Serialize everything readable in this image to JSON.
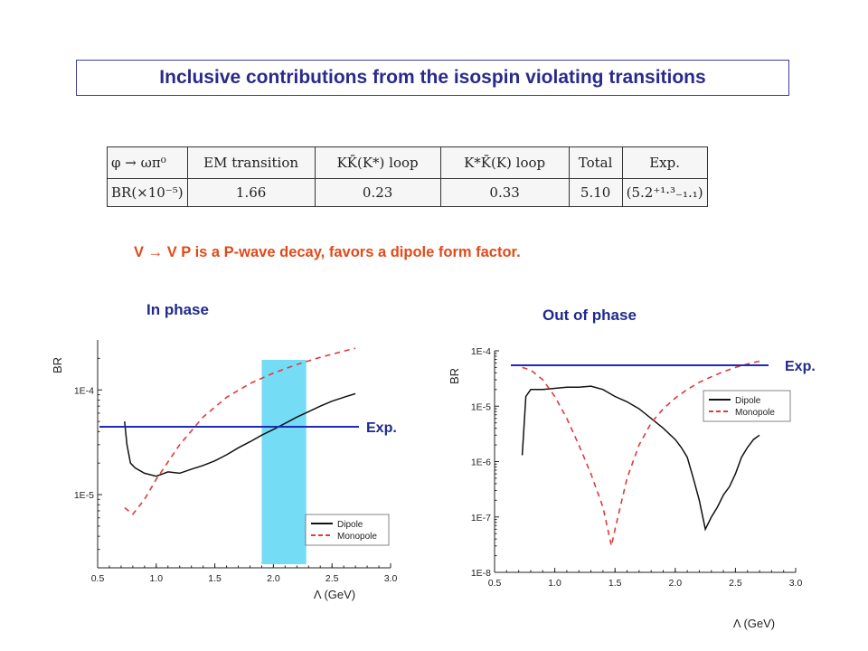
{
  "title": "Inclusive contributions from the isospin violating transitions",
  "table": {
    "headers": [
      "φ → ωπ⁰",
      "EM transition",
      "KK̄(K*) loop",
      "K*K̄(K) loop",
      "Total",
      "Exp."
    ],
    "row": [
      "BR(×10⁻⁵)",
      "1.66",
      "0.23",
      "0.33",
      "5.10",
      "(5.2⁺¹·³₋₁.₁)"
    ]
  },
  "note": "V  V P is a P-wave decay, favors a dipole form factor.",
  "note_arrow": "→",
  "colors": {
    "title": "#2a2a8c",
    "note": "#e04a1a",
    "exp_line": "#1f2ab8",
    "band": "#66d8f5",
    "dipole": "#111111",
    "monopole": "#e03a3a"
  },
  "chart_data": [
    {
      "type": "line",
      "panel_label": "In phase",
      "ylabel": "BR",
      "xlabel": "Λ  (GeV)",
      "yscale": "log",
      "xlim": [
        0.5,
        3.0
      ],
      "ylim": [
        2e-06,
        0.0003
      ],
      "xticks": [
        "0.5",
        "1.0",
        "1.5",
        "2.0",
        "2.5",
        "3.0"
      ],
      "yticks": [
        {
          "value": 0.0001,
          "label": "1E-4"
        },
        {
          "value": 1e-05,
          "label": "1E-5"
        }
      ],
      "legend": "bottom-right",
      "exp_label": "Exp.",
      "exp_value": 5.2e-05,
      "band": [
        1.9,
        2.28
      ],
      "series": [
        {
          "name": "Dipole",
          "style": "solid",
          "x": [
            0.73,
            0.75,
            0.78,
            0.82,
            0.9,
            1.0,
            1.1,
            1.2,
            1.3,
            1.4,
            1.5,
            1.6,
            1.7,
            1.8,
            1.9,
            2.0,
            2.1,
            2.2,
            2.3,
            2.4,
            2.5,
            2.6,
            2.7
          ],
          "y": [
            5e-05,
            3e-05,
            2e-05,
            1.8e-05,
            1.6e-05,
            1.5e-05,
            1.65e-05,
            1.6e-05,
            1.75e-05,
            1.9e-05,
            2.1e-05,
            2.4e-05,
            2.8e-05,
            3.2e-05,
            3.7e-05,
            4.2e-05,
            4.8e-05,
            5.5e-05,
            6.2e-05,
            7e-05,
            7.8e-05,
            8.5e-05,
            9.2e-05
          ]
        },
        {
          "name": "Monopole",
          "style": "dashed",
          "x": [
            0.73,
            0.8,
            0.9,
            1.0,
            1.2,
            1.4,
            1.6,
            1.8,
            2.0,
            2.2,
            2.4,
            2.6,
            2.7
          ],
          "y": [
            7.5e-06,
            6.5e-06,
            9e-06,
            1.4e-05,
            3e-05,
            5.5e-05,
            8.5e-05,
            0.000115,
            0.000145,
            0.000175,
            0.000205,
            0.000235,
            0.00025
          ]
        }
      ]
    },
    {
      "type": "line",
      "panel_label": "Out of phase",
      "ylabel": "BR",
      "xlabel": "Λ  (GeV)",
      "yscale": "log",
      "xlim": [
        0.5,
        3.0
      ],
      "ylim": [
        1e-08,
        0.0001
      ],
      "xticks": [
        "0.5",
        "1.0",
        "1.5",
        "2.0",
        "2.5",
        "3.0"
      ],
      "yticks": [
        {
          "value": 0.0001,
          "label": "1E-4"
        },
        {
          "value": 1e-05,
          "label": "1E-5"
        },
        {
          "value": 1e-06,
          "label": "1E-6"
        },
        {
          "value": 1e-07,
          "label": "1E-7"
        },
        {
          "value": 1e-08,
          "label": "1E-8"
        }
      ],
      "legend": "top-right",
      "exp_label": "Exp.",
      "exp_value": 5.2e-05,
      "series": [
        {
          "name": "Dipole",
          "style": "solid",
          "x": [
            0.73,
            0.76,
            0.8,
            0.9,
            1.0,
            1.1,
            1.2,
            1.3,
            1.4,
            1.5,
            1.6,
            1.7,
            1.8,
            1.9,
            2.0,
            2.05,
            2.1,
            2.15,
            2.2,
            2.25,
            2.3,
            2.35,
            2.4,
            2.45,
            2.5,
            2.55,
            2.6,
            2.65,
            2.7
          ],
          "y": [
            1.3e-06,
            1.5e-05,
            2e-05,
            2e-05,
            2.1e-05,
            2.2e-05,
            2.2e-05,
            2.3e-05,
            2e-05,
            1.5e-05,
            1.2e-05,
            9e-06,
            6e-06,
            4e-06,
            2.5e-06,
            1.8e-06,
            1.2e-06,
            5e-07,
            2e-07,
            6e-08,
            1e-07,
            1.5e-07,
            2.5e-07,
            3.5e-07,
            6e-07,
            1.2e-06,
            1.8e-06,
            2.5e-06,
            3e-06
          ]
        },
        {
          "name": "Monopole",
          "style": "dashed",
          "x": [
            0.73,
            0.8,
            0.9,
            1.0,
            1.1,
            1.2,
            1.3,
            1.4,
            1.47,
            1.5,
            1.6,
            1.7,
            1.8,
            1.9,
            2.0,
            2.1,
            2.2,
            2.3,
            2.4,
            2.5,
            2.6,
            2.7
          ],
          "y": [
            5e-05,
            4.5e-05,
            3e-05,
            1.5e-05,
            6e-06,
            2e-06,
            6e-07,
            1.5e-07,
            3e-08,
            6e-08,
            5e-07,
            2e-06,
            5e-06,
            9e-06,
            1.4e-05,
            2e-05,
            2.7e-05,
            3.4e-05,
            4.2e-05,
            5e-05,
            5.8e-05,
            6.5e-05
          ]
        }
      ]
    }
  ]
}
